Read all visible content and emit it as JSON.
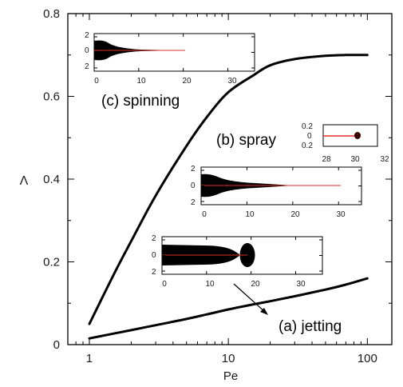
{
  "chart_data": {
    "type": "line",
    "xscale": "log",
    "xlim": [
      0.7,
      150
    ],
    "ylim": [
      0,
      0.8
    ],
    "xlabel": "Pe",
    "ylabel": "Λ",
    "xtick_labels": [
      {
        "v": 1,
        "t": "1"
      },
      {
        "v": 10,
        "t": "10"
      },
      {
        "v": 100,
        "t": "100"
      }
    ],
    "ytick_labels": [
      {
        "v": 0,
        "t": "0"
      },
      {
        "v": 0.2,
        "t": "0.2"
      },
      {
        "v": 0.4,
        "t": "0.4"
      },
      {
        "v": 0.6,
        "t": "0.6"
      },
      {
        "v": 0.8,
        "t": "0.8"
      }
    ],
    "series": [
      {
        "x": [
          1,
          1.5,
          2,
          3,
          5,
          7,
          10,
          15,
          20,
          30,
          50,
          70,
          100
        ],
        "y": [
          0.05,
          0.17,
          0.25,
          0.36,
          0.48,
          0.55,
          0.61,
          0.65,
          0.675,
          0.69,
          0.698,
          0.7,
          0.7
        ]
      },
      {
        "x": [
          1,
          2,
          3,
          5,
          7,
          10,
          15,
          20,
          30,
          50,
          70,
          100
        ],
        "y": [
          0.015,
          0.035,
          0.047,
          0.062,
          0.073,
          0.085,
          0.097,
          0.105,
          0.117,
          0.133,
          0.145,
          0.16
        ]
      }
    ],
    "annotations": [
      {
        "id": "spinning",
        "text": "(c) spinning"
      },
      {
        "id": "spray",
        "text": "(b) spray"
      },
      {
        "id": "jetting",
        "text": "(a) jetting"
      }
    ],
    "insets": [
      {
        "id": "spinning",
        "xlim": [
          0,
          36
        ],
        "xtick_labels": [
          "0",
          "10",
          "20",
          "30"
        ],
        "ytick_labels": [
          "2",
          "0",
          "2"
        ],
        "tip_x": 19
      },
      {
        "id": "spray-main",
        "xlim": [
          0,
          35
        ],
        "xtick_labels": [
          "0",
          "10",
          "20",
          "30"
        ],
        "ytick_labels": [
          "2",
          "0",
          "2"
        ],
        "tip_x": 30
      },
      {
        "id": "spray-zoom",
        "xlim": [
          27.5,
          32
        ],
        "xtick_labels": [
          "28",
          "30",
          "32"
        ],
        "ytick_labels": [
          "0.2",
          "0",
          "0.2"
        ],
        "tip_x": 30.5
      },
      {
        "id": "jetting",
        "xlim": [
          0,
          36
        ],
        "xtick_labels": [
          "0",
          "10",
          "20",
          "30"
        ],
        "ytick_labels": [
          "2",
          "0",
          "2"
        ],
        "tip_x": 19
      }
    ]
  }
}
